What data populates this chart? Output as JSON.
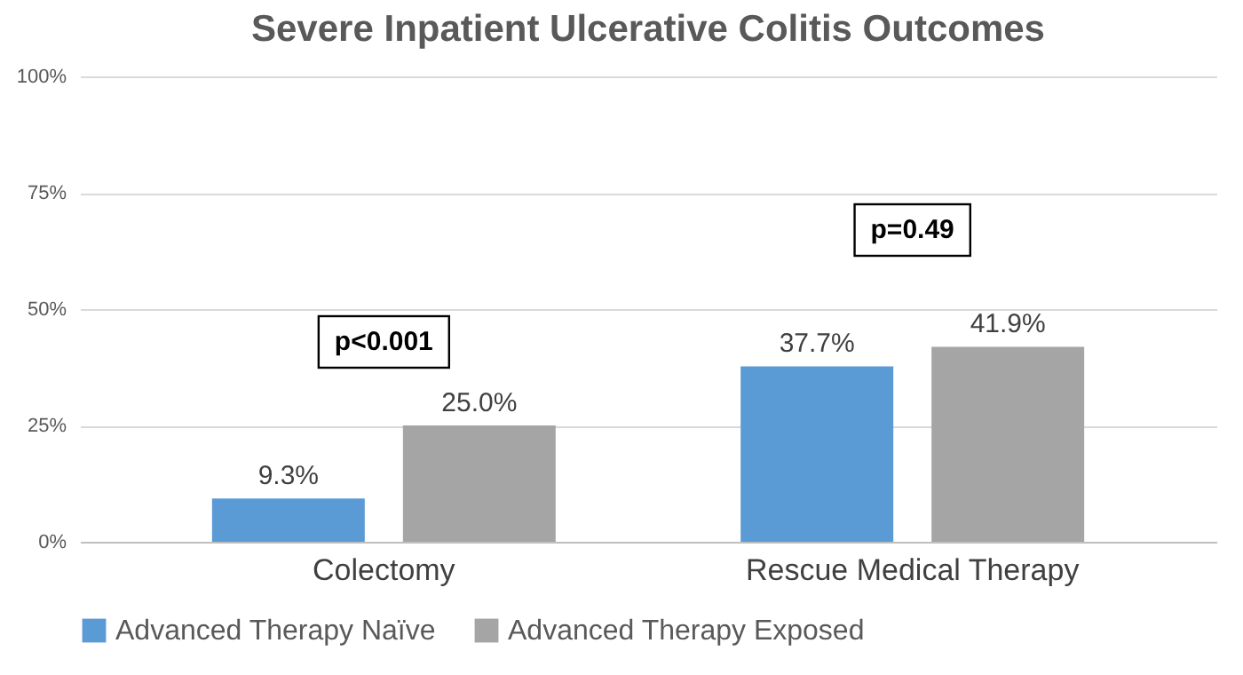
{
  "chart_data": {
    "type": "bar",
    "title": "Severe Inpatient Ulcerative Colitis Outcomes",
    "categories": [
      "Colectomy",
      "Rescue Medical Therapy"
    ],
    "series": [
      {
        "name": "Advanced Therapy Naïve",
        "color": "#5b9bd5",
        "values": [
          9.3,
          37.7
        ],
        "value_labels": [
          "9.3%",
          "37.7%"
        ]
      },
      {
        "name": "Advanced Therapy Exposed",
        "color": "#a5a5a5",
        "values": [
          25.0,
          41.9
        ],
        "value_labels": [
          "25.0%",
          "41.9%"
        ]
      }
    ],
    "ylim": [
      0,
      100
    ],
    "yticks": [
      {
        "value": 0,
        "label": "0%"
      },
      {
        "value": 25,
        "label": "25%"
      },
      {
        "value": 50,
        "label": "50%"
      },
      {
        "value": 75,
        "label": "75%"
      },
      {
        "value": 100,
        "label": "100%"
      }
    ],
    "grid": "y",
    "legend": "bottom",
    "annotations": [
      "p<0.001",
      "p=0.49"
    ]
  }
}
